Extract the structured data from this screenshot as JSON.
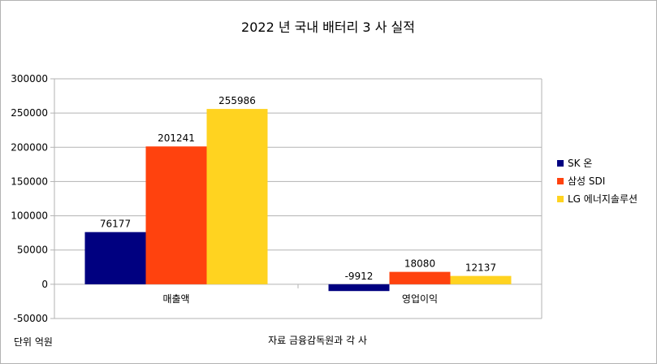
{
  "chart_data": {
    "type": "bar",
    "title": "2022 년 국내 배터리  3 사 실적",
    "categories": [
      "매출액",
      "영업이익"
    ],
    "series": [
      {
        "name": "SK 온",
        "color": "#000080",
        "values": [
          76177,
          -9912
        ]
      },
      {
        "name": "삼성 SDI",
        "color": "#ff420e",
        "values": [
          201241,
          18080
        ]
      },
      {
        "name": "LG 에너지솔루션",
        "color": "#ffd320",
        "values": [
          255986,
          12137
        ]
      }
    ],
    "ylim": [
      -50000,
      300000
    ],
    "yticks": [
      "-50000",
      "0",
      "50000",
      "100000",
      "150000",
      "200000",
      "250000",
      "300000"
    ],
    "grid": true,
    "legend_position": "right",
    "unit_note": "단위 억원",
    "source_note": "자료 금융감독원과 각 사"
  }
}
